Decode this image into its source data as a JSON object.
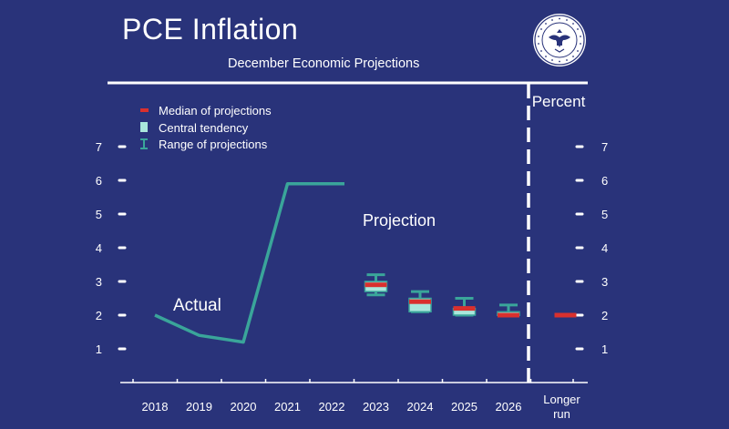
{
  "slide": {
    "title": "PCE Inflation",
    "subtitle": "December Economic Projections",
    "seal_text": "BOARD OF GOVERNORS OF THE FEDERAL RESERVE SYSTEM",
    "unit_label": "Percent",
    "actual_label": "Actual",
    "projection_label": "Projection",
    "colors": {
      "background": "#29337a",
      "line": "#3aa59a",
      "median": "#d9302e",
      "central_tendency": "#a9e7dc",
      "range": "#3aa59a",
      "text": "#ffffff"
    }
  },
  "chart_data": {
    "type": "line",
    "categories": [
      "2018",
      "2019",
      "2020",
      "2021",
      "2022",
      "2023",
      "2024",
      "2025",
      "2026",
      "Longer run"
    ],
    "ylim": [
      0,
      7
    ],
    "yticks": [
      1,
      2,
      3,
      4,
      5,
      6,
      7
    ],
    "ylabel": "Percent",
    "xlabel": "",
    "legend": {
      "placement": "top-left",
      "entries": [
        "Median of projections",
        "Central tendency",
        "Range of projections"
      ]
    },
    "actual": {
      "name": "Actual",
      "x": [
        "2018",
        "2019",
        "2020",
        "2021",
        "2022"
      ],
      "values": [
        2.0,
        1.4,
        1.2,
        5.9,
        5.9
      ]
    },
    "projections": [
      {
        "x": "2023",
        "median": 2.9,
        "central_tendency": [
          2.7,
          3.0
        ],
        "range": [
          2.6,
          3.2
        ]
      },
      {
        "x": "2024",
        "median": 2.4,
        "central_tendency": [
          2.1,
          2.5
        ],
        "range": [
          2.1,
          2.7
        ]
      },
      {
        "x": "2025",
        "median": 2.2,
        "central_tendency": [
          2.0,
          2.2
        ],
        "range": [
          2.0,
          2.5
        ]
      },
      {
        "x": "2026",
        "median": 2.0,
        "central_tendency": [
          2.0,
          2.1
        ],
        "range": [
          2.0,
          2.3
        ]
      },
      {
        "x": "Longer run",
        "median": 2.0,
        "central_tendency": [
          2.0,
          2.0
        ],
        "range": [
          2.0,
          2.0
        ]
      }
    ]
  }
}
